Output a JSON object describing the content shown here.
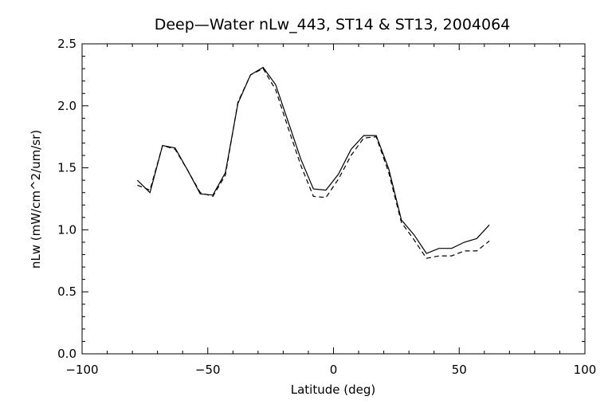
{
  "chart_data": {
    "type": "line",
    "title": "Deep—Water nLw_443, ST14 & ST13, 2004064",
    "xlabel": "Latitude (deg)",
    "ylabel": "nLw (mW/cm^2/um/sr)",
    "xlim": [
      -100,
      100
    ],
    "ylim": [
      0.0,
      2.5
    ],
    "xticks": [
      -100,
      -50,
      0,
      50,
      100
    ],
    "xtick_labels": [
      "−100",
      "−50",
      "0",
      "50",
      "100"
    ],
    "yticks": [
      0.0,
      0.5,
      1.0,
      1.5,
      2.0,
      2.5
    ],
    "ytick_labels": [
      "0.0",
      "0.5",
      "1.0",
      "1.5",
      "2.0",
      "2.5"
    ],
    "grid": false,
    "series": [
      {
        "line_style": "solid",
        "color": "#000000",
        "x": [
          -78,
          -73,
          -68,
          -63,
          -58,
          -53,
          -48,
          -43,
          -38,
          -33,
          -28,
          -23,
          -18,
          -13,
          -8,
          -3,
          2,
          7,
          12,
          17,
          22,
          27,
          32,
          37,
          42,
          47,
          52,
          57,
          62
        ],
        "y": [
          1.4,
          1.3,
          1.68,
          1.66,
          1.48,
          1.29,
          1.28,
          1.46,
          2.02,
          2.25,
          2.31,
          2.17,
          1.87,
          1.57,
          1.33,
          1.32,
          1.45,
          1.65,
          1.76,
          1.76,
          1.49,
          1.08,
          0.96,
          0.81,
          0.85,
          0.85,
          0.9,
          0.93,
          1.04
        ]
      },
      {
        "line_style": "dashed",
        "color": "#000000",
        "x": [
          -78,
          -73,
          -68,
          -63,
          -58,
          -53,
          -48,
          -43,
          -38,
          -33,
          -28,
          -23,
          -18,
          -13,
          -8,
          -3,
          2,
          7,
          12,
          17,
          22,
          27,
          32,
          37,
          42,
          47,
          52,
          57,
          62
        ],
        "y": [
          1.36,
          1.32,
          1.68,
          1.65,
          1.48,
          1.3,
          1.27,
          1.44,
          2.03,
          2.25,
          2.3,
          2.13,
          1.82,
          1.52,
          1.27,
          1.26,
          1.41,
          1.6,
          1.74,
          1.75,
          1.46,
          1.06,
          0.92,
          0.77,
          0.79,
          0.79,
          0.83,
          0.83,
          0.91
        ]
      }
    ]
  }
}
